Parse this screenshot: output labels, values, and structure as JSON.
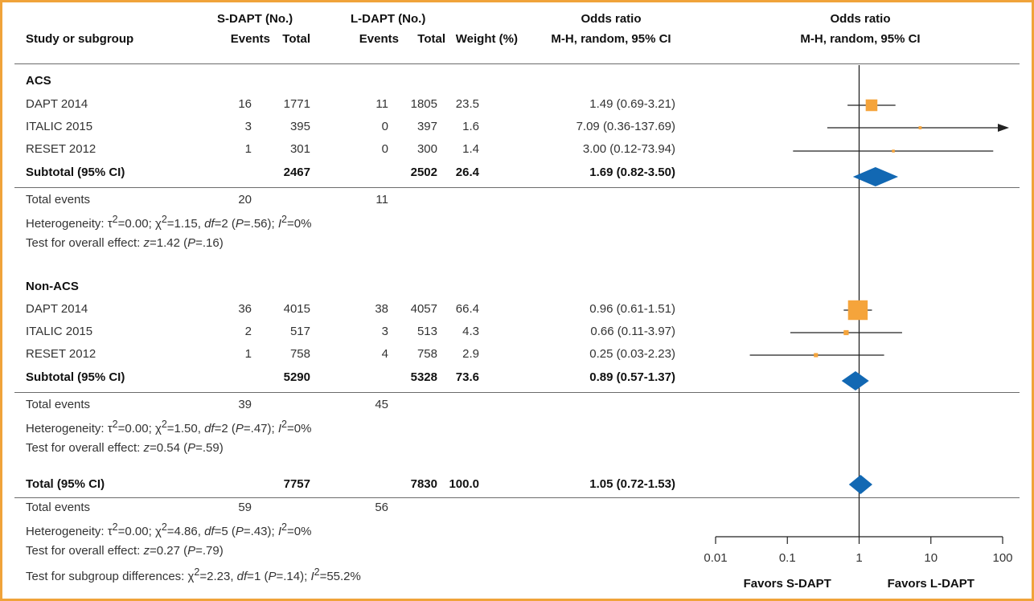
{
  "headers": {
    "study": "Study or subgroup",
    "s_dapt_group": "S-DAPT (No.)",
    "l_dapt_group": "L-DAPT (No.)",
    "events": "Events",
    "total": "Total",
    "weight": "Weight (%)",
    "or_title": "Odds ratio",
    "or_method": "M-H, random, 95% CI",
    "plot_title": "Odds ratio",
    "plot_method": "M-H, random, 95% CI"
  },
  "groups": [
    {
      "name": "ACS",
      "studies": [
        {
          "study": "DAPT 2014",
          "s_events": "16",
          "s_total": "1771",
          "l_events": "11",
          "l_total": "1805",
          "weight": "23.5",
          "or": "1.49 (0.69-3.21)"
        },
        {
          "study": "ITALIC 2015",
          "s_events": "3",
          "s_total": "395",
          "l_events": "0",
          "l_total": "397",
          "weight": "1.6",
          "or": "7.09 (0.36-137.69)"
        },
        {
          "study": "RESET 2012",
          "s_events": "1",
          "s_total": "301",
          "l_events": "0",
          "l_total": "300",
          "weight": "1.4",
          "or": "3.00 (0.12-73.94)"
        }
      ],
      "subtotal": {
        "label": "Subtotal (95% CI)",
        "s_total": "2467",
        "l_total": "2502",
        "weight": "26.4",
        "or": "1.69 (0.82-3.50)"
      },
      "total_events": {
        "label": "Total events",
        "s": "20",
        "l": "11"
      },
      "heterogeneity": {
        "prefix": "Heterogeneity: ",
        "tau2": "0.00",
        "chi2": "1.15",
        "df": "2",
        "p": ".56",
        "i2": "0%"
      },
      "overall": {
        "prefix": "Test for overall effect: ",
        "z": "1.42",
        "p": ".16"
      }
    },
    {
      "name": "Non-ACS",
      "studies": [
        {
          "study": "DAPT 2014",
          "s_events": "36",
          "s_total": "4015",
          "l_events": "38",
          "l_total": "4057",
          "weight": "66.4",
          "or": "0.96 (0.61-1.51)"
        },
        {
          "study": "ITALIC 2015",
          "s_events": "2",
          "s_total": "517",
          "l_events": "3",
          "l_total": "513",
          "weight": "4.3",
          "or": "0.66 (0.11-3.97)"
        },
        {
          "study": "RESET 2012",
          "s_events": "1",
          "s_total": "758",
          "l_events": "4",
          "l_total": "758",
          "weight": "2.9",
          "or": "0.25 (0.03-2.23)"
        }
      ],
      "subtotal": {
        "label": "Subtotal (95% CI)",
        "s_total": "5290",
        "l_total": "5328",
        "weight": "73.6",
        "or": "0.89 (0.57-1.37)"
      },
      "total_events": {
        "label": "Total events",
        "s": "39",
        "l": "45"
      },
      "heterogeneity": {
        "prefix": "Heterogeneity: ",
        "tau2": "0.00",
        "chi2": "1.50",
        "df": "2",
        "p": ".47",
        "i2": "0%"
      },
      "overall": {
        "prefix": "Test for overall effect: ",
        "z": "0.54",
        "p": ".59"
      }
    }
  ],
  "total": {
    "label": "Total (95% CI)",
    "s_total": "7757",
    "l_total": "7830",
    "weight": "100.0",
    "or": "1.05 (0.72-1.53)",
    "total_events": {
      "label": "Total events",
      "s": "59",
      "l": "56"
    },
    "heterogeneity": {
      "prefix": "Heterogeneity: ",
      "tau2": "0.00",
      "chi2": "4.86",
      "df": "5",
      "p": ".43",
      "i2": "0%"
    },
    "overall": {
      "prefix": "Test for overall effect: ",
      "z": "0.27",
      "p": ".79"
    },
    "subgroup": {
      "prefix": "Test for subgroup differences: ",
      "chi2": "2.23",
      "df": "1",
      "p": ".14",
      "i2": "55.2%"
    }
  },
  "chart_data": {
    "type": "scatter",
    "x_scale": "log",
    "xlim": [
      0.01,
      100
    ],
    "ticks": [
      {
        "value": 0.01,
        "label": "0.01"
      },
      {
        "value": 0.1,
        "label": "0.1"
      },
      {
        "value": 1,
        "label": "1"
      },
      {
        "value": 10,
        "label": "10"
      },
      {
        "value": 100,
        "label": "100"
      }
    ],
    "favors_left": "Favors S-DAPT",
    "favors_right": "Favors L-DAPT",
    "studies": [
      {
        "est": 1.49,
        "lo": 0.69,
        "hi": 3.21,
        "weight": 23.5
      },
      {
        "est": 7.09,
        "lo": 0.36,
        "hi": 137.69,
        "weight": 1.6
      },
      {
        "est": 3.0,
        "lo": 0.12,
        "hi": 73.94,
        "weight": 1.4
      },
      {
        "est": 0.96,
        "lo": 0.61,
        "hi": 1.51,
        "weight": 66.4
      },
      {
        "est": 0.66,
        "lo": 0.11,
        "hi": 3.97,
        "weight": 4.3
      },
      {
        "est": 0.25,
        "lo": 0.03,
        "hi": 2.23,
        "weight": 2.9
      }
    ],
    "diamonds": [
      {
        "est": 1.69,
        "lo": 0.82,
        "hi": 3.5
      },
      {
        "est": 0.89,
        "lo": 0.57,
        "hi": 1.37
      },
      {
        "est": 1.05,
        "lo": 0.72,
        "hi": 1.53
      }
    ],
    "colors": {
      "square": "#f5a43b",
      "diamond": "#1268b3",
      "line": "#222222"
    }
  }
}
